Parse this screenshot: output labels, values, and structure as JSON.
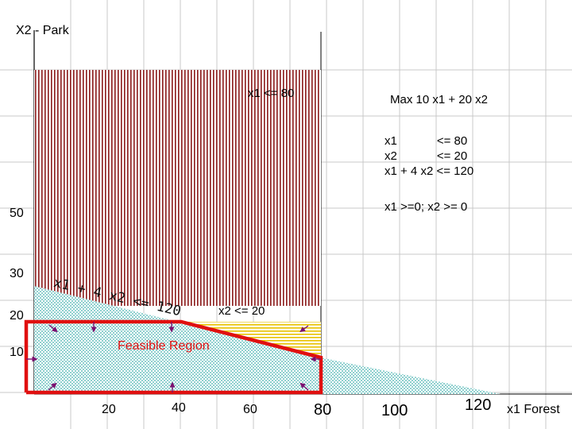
{
  "axes": {
    "y_title": "X2 - Park",
    "x_title": "x1 Forest",
    "y_ticks": [
      "50",
      "30",
      "20",
      "10"
    ],
    "x_ticks": [
      "20",
      "40",
      "60",
      "80",
      "100",
      "120"
    ]
  },
  "labels": {
    "x1_bound": "x1 <= 80",
    "x2_bound": "x2 <= 20",
    "combined": "x1 + 4 x2 <= 120",
    "feasible": "Feasible Region"
  },
  "model": {
    "objective": "Max 10 x1 + 20 x2",
    "constraints": [
      "x1            <= 80",
      "x2            <= 20",
      "x1 + 4 x2 <= 120"
    ],
    "nonneg": "x1 >=0; x2 >= 0"
  },
  "colors": {
    "feasible_outline": "#e01010",
    "x1_hatch": "#8b1a1a",
    "x2_hatch": "#e8c200",
    "combined_check": "#8fd0cf",
    "grid": "#c8c8c8"
  },
  "chart_data": {
    "type": "area",
    "xlabel": "x1 Forest",
    "ylabel": "X2 - Park",
    "constraints": [
      {
        "label": "x1 <= 80",
        "x": 80
      },
      {
        "label": "x2 <= 20",
        "y": 20
      },
      {
        "label": "x1 + 4 x2 <= 120",
        "points": [
          [
            0,
            30
          ],
          [
            120,
            0
          ]
        ]
      }
    ],
    "feasible_region": [
      [
        0,
        0
      ],
      [
        0,
        20
      ],
      [
        40,
        20
      ],
      [
        80,
        10
      ],
      [
        80,
        0
      ]
    ]
  }
}
